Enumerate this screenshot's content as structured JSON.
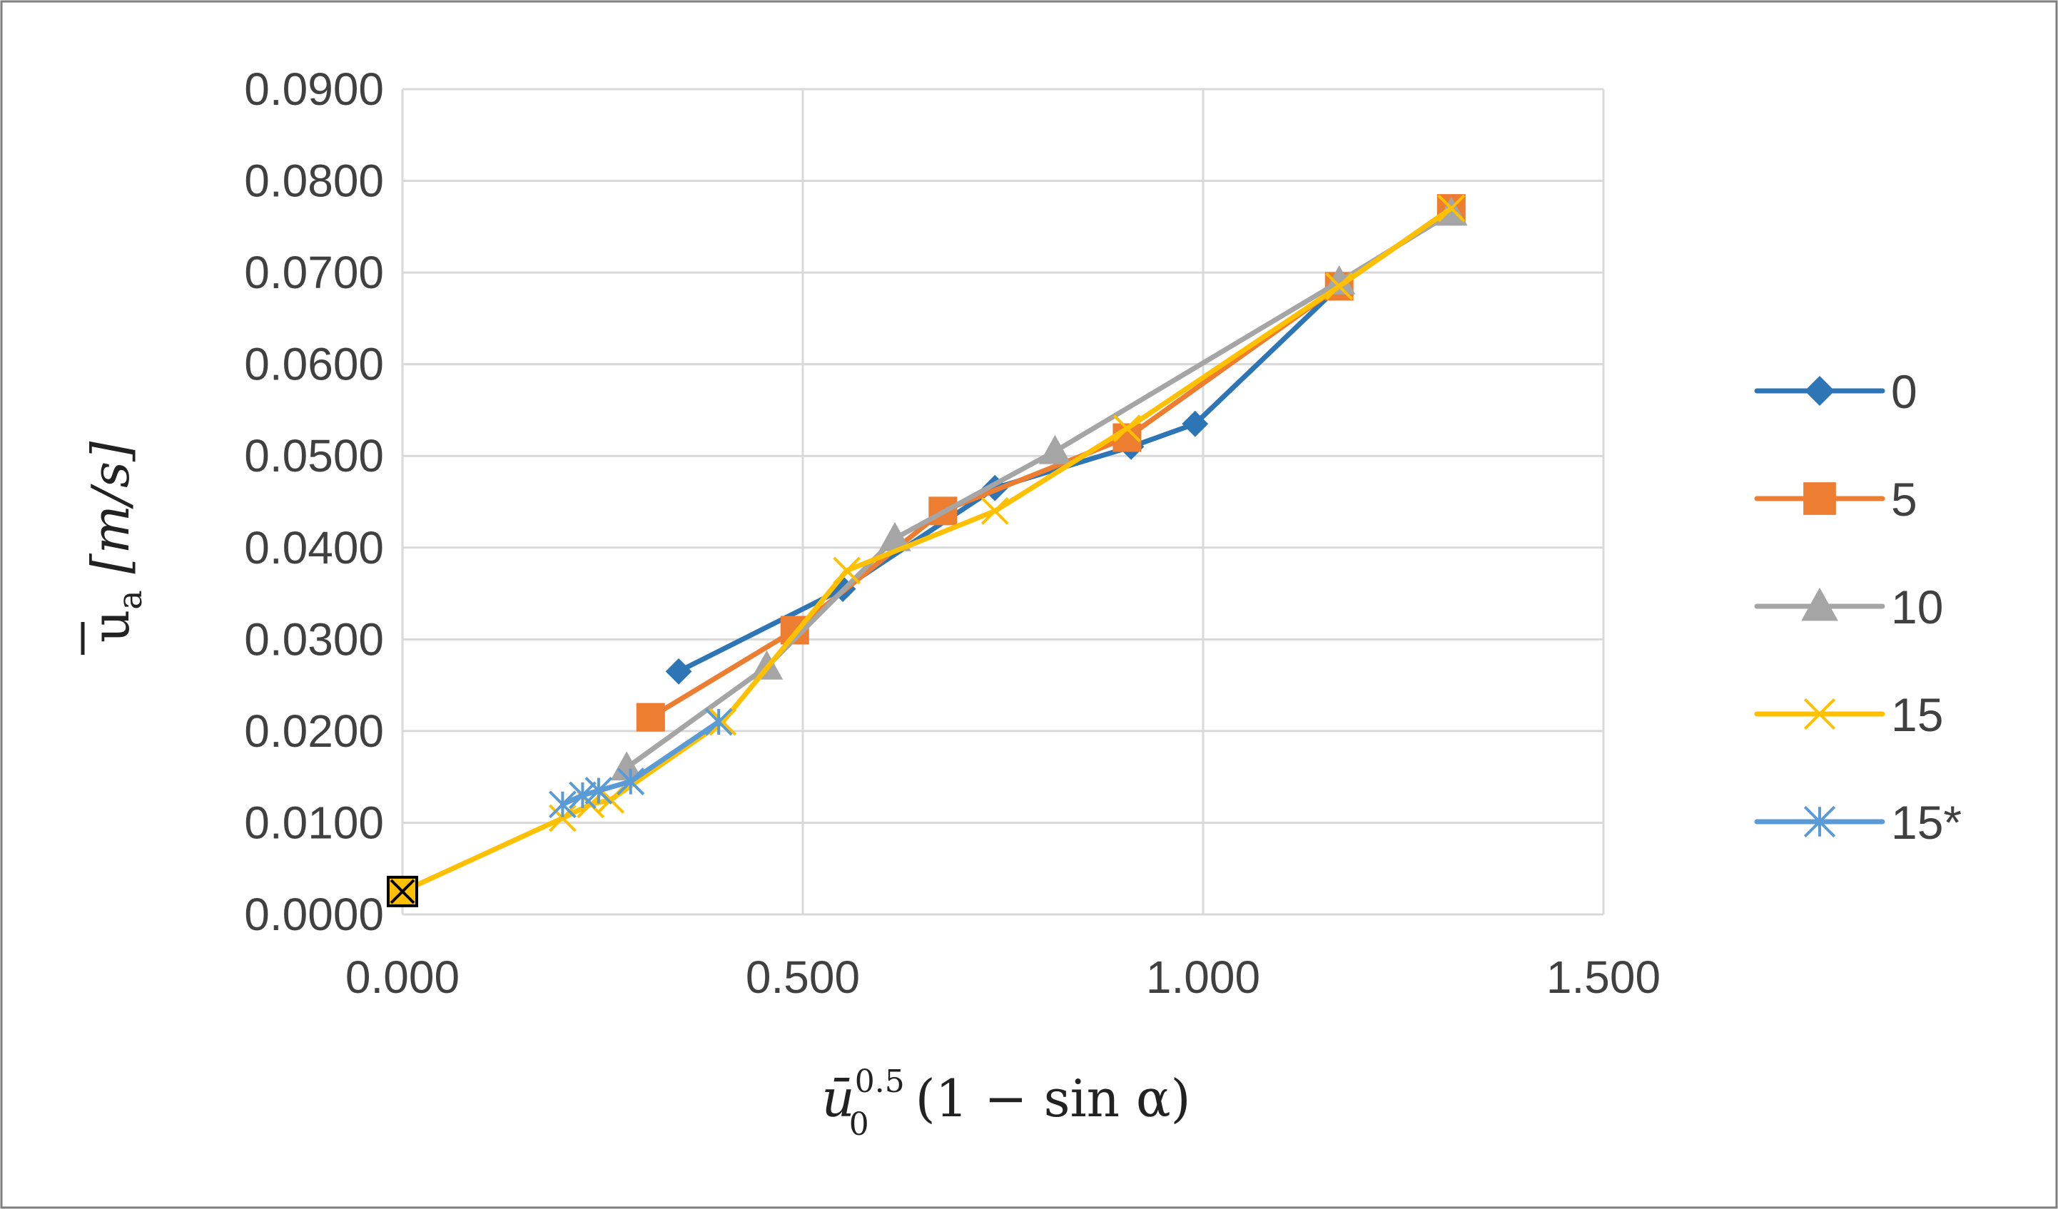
{
  "chart_data": {
    "type": "line",
    "title": "",
    "xlabel_parts": {
      "base": "ū",
      "sub": "0",
      "sup": "0.5",
      "rest": " (1 − sin α)"
    },
    "ylabel_parts": {
      "base": "u",
      "sub": "a",
      "rest": " [m/s]"
    },
    "xlim": [
      0,
      1.5
    ],
    "ylim": [
      0,
      0.09
    ],
    "xticks": [
      0,
      0.5,
      1.0,
      1.5
    ],
    "xtick_labels": [
      "0.000",
      "0.500",
      "1.000",
      "1.500"
    ],
    "yticks": [
      0,
      0.01,
      0.02,
      0.03,
      0.04,
      0.05,
      0.06,
      0.07,
      0.08,
      0.09
    ],
    "ytick_labels": [
      "0.0000",
      "0.0100",
      "0.0200",
      "0.0300",
      "0.0400",
      "0.0500",
      "0.0600",
      "0.0700",
      "0.0800",
      "0.0900"
    ],
    "grid": true,
    "legend_position": "right",
    "series": [
      {
        "name": "0",
        "color": "#2E75B6",
        "marker": "diamond",
        "x": [
          0.345,
          0.55,
          0.74,
          0.91,
          0.99,
          1.17,
          1.31
        ],
        "y": [
          0.0265,
          0.0355,
          0.0465,
          0.051,
          0.0535,
          0.0685,
          0.077
        ]
      },
      {
        "name": "5",
        "color": "#ED7D31",
        "marker": "square",
        "x": [
          0.31,
          0.49,
          0.675,
          0.905,
          1.17,
          1.31
        ],
        "y": [
          0.0215,
          0.031,
          0.044,
          0.052,
          0.0685,
          0.077
        ]
      },
      {
        "name": "10",
        "color": "#A5A5A5",
        "marker": "triangle",
        "x": [
          0.28,
          0.455,
          0.615,
          0.815,
          1.17,
          1.31
        ],
        "y": [
          0.016,
          0.027,
          0.041,
          0.0505,
          0.069,
          0.0765
        ]
      },
      {
        "name": "15",
        "color": "#FFC000",
        "marker": "x",
        "x": [
          0.0,
          0.2,
          0.235,
          0.26,
          0.4,
          0.555,
          0.74,
          0.905,
          1.17,
          1.31
        ],
        "y": [
          0.0025,
          0.0105,
          0.012,
          0.0125,
          0.021,
          0.0375,
          0.044,
          0.053,
          0.0685,
          0.077
        ]
      },
      {
        "name": "15*",
        "color": "#5B9BD5",
        "marker": "asterisk",
        "x": [
          0.2,
          0.225,
          0.245,
          0.285,
          0.395
        ],
        "y": [
          0.012,
          0.013,
          0.0135,
          0.0145,
          0.021
        ]
      }
    ],
    "annotations": [
      {
        "type": "marker",
        "shape": "boxed-x",
        "x": 0.0,
        "y": 0.0025,
        "fill": "#FFC000",
        "stroke": "#000000"
      }
    ]
  }
}
